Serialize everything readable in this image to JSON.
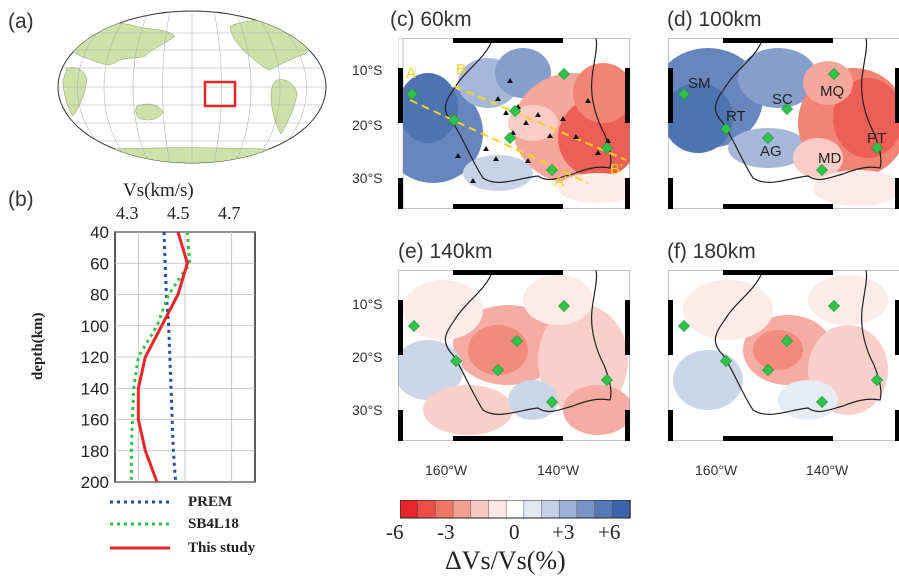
{
  "panel_a": {
    "label": "(a)"
  },
  "panel_b": {
    "label": "(b)",
    "xlabel": "Vs(km/s)",
    "ylabel": "depth(km)",
    "xticks": [
      "4.3",
      "4.5",
      "4.7"
    ],
    "yticks": [
      "40",
      "60",
      "80",
      "100",
      "120",
      "140",
      "160",
      "180",
      "200"
    ],
    "legend": [
      "PREM",
      "SB4L18",
      "This study"
    ]
  },
  "maps": [
    {
      "label": "(c) 60km"
    },
    {
      "label": "(d) 100km"
    },
    {
      "label": "(e) 140km"
    },
    {
      "label": "(f) 180km"
    }
  ],
  "lat_ticks": [
    "10°S",
    "20°S",
    "30°S"
  ],
  "lon_ticks": [
    "160°W",
    "140°W"
  ],
  "profile_labels": [
    "A",
    "B",
    "A'",
    "B'"
  ],
  "station_labels": [
    "SM",
    "SC",
    "MQ",
    "RT",
    "AG",
    "MD",
    "PT"
  ],
  "colorbar": {
    "ticks": [
      "-6",
      "-3",
      "0",
      "+3",
      "+6"
    ],
    "title": "ΔVs/Vs(%)",
    "colors": [
      "#e8262a",
      "#ec4d45",
      "#f07766",
      "#f59e92",
      "#f9c8c0",
      "#fde8e4",
      "#ffffff",
      "#e3e8f3",
      "#c3cfe6",
      "#9db1d6",
      "#7894c6",
      "#5679b6",
      "#3a64a8"
    ]
  },
  "chart_data": {
    "type": "line",
    "title": "",
    "xlabel": "Vs(km/s)",
    "ylabel": "depth(km)",
    "xlim": [
      4.2,
      4.8
    ],
    "ylim": [
      200,
      40
    ],
    "series": [
      {
        "name": "PREM",
        "style": "dotted",
        "color": "#1f4fa0",
        "x": [
          4.41,
          4.415,
          4.42,
          4.43,
          4.435,
          4.44,
          4.445,
          4.45,
          4.46
        ],
        "y": [
          40,
          60,
          80,
          100,
          120,
          140,
          160,
          180,
          200
        ]
      },
      {
        "name": "SB4L18",
        "style": "dotted",
        "color": "#2ec44a",
        "x": [
          4.51,
          4.52,
          4.43,
          4.38,
          4.3,
          4.28,
          4.275,
          4.27,
          4.27
        ],
        "y": [
          40,
          60,
          80,
          100,
          120,
          140,
          160,
          180,
          200
        ]
      },
      {
        "name": "This study",
        "style": "solid",
        "color": "#e8262a",
        "x": [
          4.47,
          4.51,
          4.47,
          4.4,
          4.33,
          4.3,
          4.3,
          4.33,
          4.38
        ],
        "y": [
          40,
          60,
          80,
          100,
          120,
          140,
          160,
          180,
          200
        ]
      }
    ]
  }
}
